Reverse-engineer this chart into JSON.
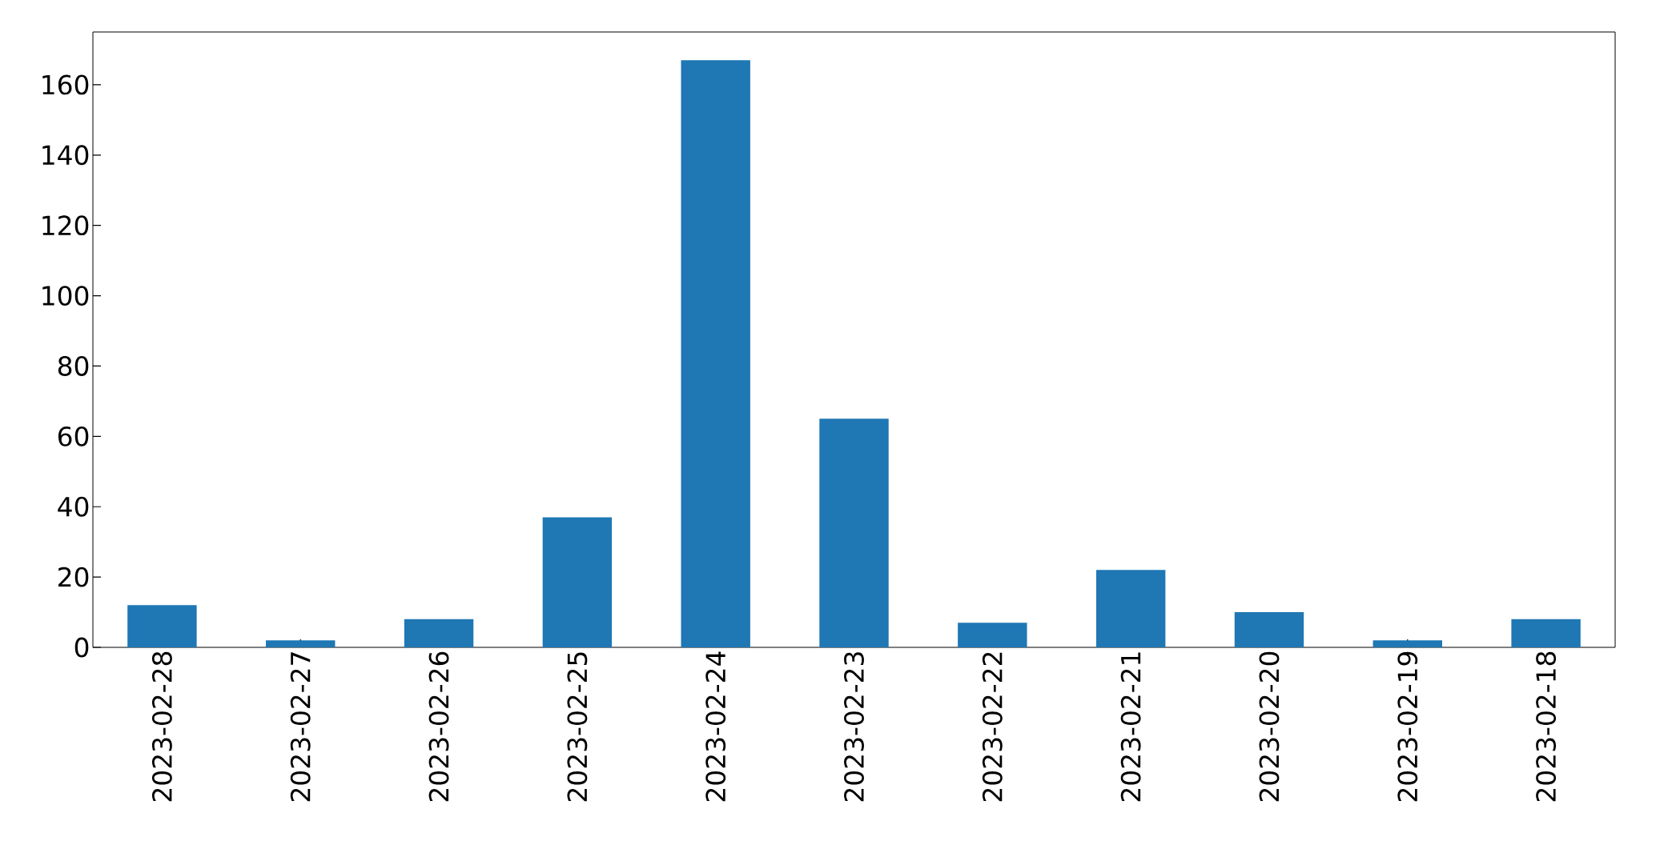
{
  "chart_data": {
    "type": "bar",
    "categories": [
      "2023-02-28",
      "2023-02-27",
      "2023-02-26",
      "2023-02-25",
      "2023-02-24",
      "2023-02-23",
      "2023-02-22",
      "2023-02-21",
      "2023-02-20",
      "2023-02-19",
      "2023-02-18"
    ],
    "values": [
      12,
      2,
      8,
      37,
      167,
      65,
      7,
      22,
      10,
      2,
      8
    ],
    "color": "#1f77b4",
    "ylim": [
      0,
      175
    ],
    "yticks": [
      0,
      20,
      40,
      60,
      80,
      100,
      120,
      140,
      160
    ]
  }
}
